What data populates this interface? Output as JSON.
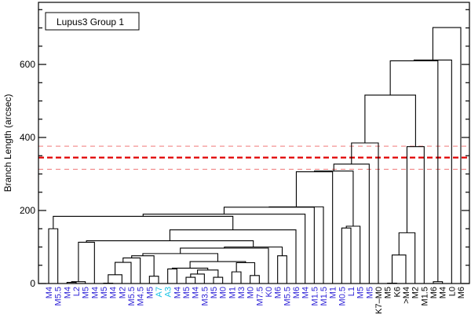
{
  "chart_data": {
    "type": "dendrogram",
    "title": "Lupus3 Group 1",
    "ylabel": "Branch Length (arcsec)",
    "xlabel": "",
    "ylim": [
      0,
      770
    ],
    "yticks": [
      0,
      200,
      400,
      600
    ],
    "y_minor_step": 50,
    "legend_placement": "top-left",
    "leaves": [
      "M4",
      "M5.5",
      "M4",
      "L2",
      "M5",
      "M4",
      "M5",
      "M4",
      "M2",
      "M5.5",
      "M4.5",
      "M5",
      "A7",
      "A3",
      "M4",
      "M5",
      "M4",
      "M3.5",
      "M5",
      "M0",
      "M1",
      "M3",
      "M0",
      "M7.5",
      "K0",
      "M6",
      "M5.5",
      "M6",
      "M4",
      "M1.5",
      "M1.5",
      "M1",
      "M0.5",
      "L1",
      "M5",
      "M5",
      "K7–M0",
      "M5",
      "K6",
      ">M4",
      "M2",
      "M1.5",
      "M6",
      "M4",
      "L0",
      "M6"
    ],
    "leaf_colors": [
      "#2b1fd6",
      "#2b1fd6",
      "#2b1fd6",
      "#2b1fd6",
      "#2b1fd6",
      "#2b1fd6",
      "#2b1fd6",
      "#2b1fd6",
      "#2b1fd6",
      "#2b1fd6",
      "#2b1fd6",
      "#2b1fd6",
      "#19c3e6",
      "#19c3e6",
      "#2b1fd6",
      "#2b1fd6",
      "#2b1fd6",
      "#2b1fd6",
      "#2b1fd6",
      "#2b1fd6",
      "#2b1fd6",
      "#2b1fd6",
      "#2b1fd6",
      "#2b1fd6",
      "#2b1fd6",
      "#2b1fd6",
      "#2b1fd6",
      "#2b1fd6",
      "#2b1fd6",
      "#2b1fd6",
      "#2b1fd6",
      "#2b1fd6",
      "#2b1fd6",
      "#2b1fd6",
      "#2b1fd6",
      "#2b1fd6",
      "#000000",
      "#000000",
      "#000000",
      "#000000",
      "#000000",
      "#000000",
      "#000000",
      "#000000",
      "#000000",
      "#000000"
    ],
    "merges": [
      [
        0,
        1,
        150
      ],
      [
        2,
        3,
        3
      ],
      [
        "n1",
        4,
        5
      ],
      [
        "n2",
        5,
        113
      ],
      [
        6,
        7,
        1
      ],
      [
        "n4",
        8,
        24
      ],
      [
        "n5",
        9,
        58
      ],
      [
        "n6",
        10,
        70
      ],
      [
        11,
        12,
        20
      ],
      [
        "n7",
        "n8",
        76
      ],
      [
        13,
        14,
        40
      ],
      [
        15,
        16,
        17
      ],
      [
        "n11",
        17,
        26
      ],
      [
        18,
        19,
        17
      ],
      [
        "n12",
        "n13",
        37
      ],
      [
        "n10",
        "n14",
        42
      ],
      [
        20,
        21,
        32
      ],
      [
        22,
        23,
        22
      ],
      [
        "n16",
        "n17",
        57
      ],
      [
        "n15",
        "n18",
        60
      ],
      [
        "n9",
        "n19",
        82
      ],
      [
        "n20",
        24,
        97
      ],
      [
        25,
        26,
        76
      ],
      [
        "n21",
        "n22",
        100
      ],
      [
        "n3",
        "n23",
        117
      ],
      [
        "n24",
        27,
        147
      ],
      [
        "n0",
        "n25",
        184
      ],
      [
        "n26",
        28,
        190
      ],
      [
        "n27",
        29,
        209
      ],
      [
        "n28",
        30,
        210
      ],
      [
        "n29",
        31,
        306
      ],
      [
        32,
        33,
        152
      ],
      [
        "n31",
        34,
        157
      ],
      [
        "n30",
        "n32",
        308
      ],
      [
        "n33",
        35,
        327
      ],
      [
        "n34",
        36,
        385
      ],
      [
        37,
        38,
        1
      ],
      [
        "n36",
        39,
        78
      ],
      [
        "n37",
        40,
        139
      ],
      [
        "n38",
        41,
        375
      ],
      [
        "n35",
        "n39",
        516
      ],
      [
        42,
        43,
        5
      ],
      [
        "n40",
        "n41",
        610
      ],
      [
        "n42",
        44,
        612
      ],
      [
        "n43",
        45,
        701
      ]
    ],
    "threshold_lines": [
      {
        "value": 345,
        "style": "thick-dashed",
        "color": "#e00000"
      },
      {
        "value": 376,
        "style": "dashed",
        "color": "#f07a7a"
      },
      {
        "value": 313,
        "style": "dashed",
        "color": "#f07a7a"
      }
    ]
  }
}
